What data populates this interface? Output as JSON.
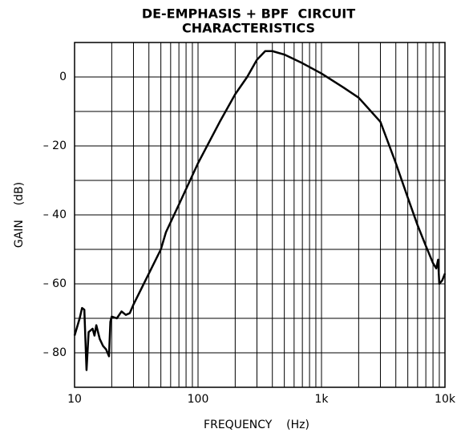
{
  "chart_data": {
    "type": "line",
    "title": [
      "DE-EMPHASIS + BPF  CIRCUIT",
      "CHARACTERISTICS"
    ],
    "xlabel": "FREQUENCY    (Hz)",
    "ylabel": "GAIN    (dB)",
    "x": [
      10,
      11,
      11.5,
      12,
      12.5,
      13,
      14,
      14.5,
      15,
      16,
      17,
      18,
      19,
      19.5,
      20,
      22,
      24,
      26,
      28,
      30,
      40,
      50,
      55,
      70,
      100,
      150,
      200,
      250,
      300,
      350,
      400,
      500,
      700,
      1000,
      1500,
      2000,
      3000,
      4000,
      5000,
      6000,
      7000,
      8000,
      8500,
      8800,
      9000,
      9500,
      10000
    ],
    "series": [
      {
        "color": "#000000",
        "values": [
          -75,
          -70,
          -67,
          -67.5,
          -85,
          -74,
          -73,
          -75,
          -72,
          -76,
          -78,
          -79,
          -81,
          -71,
          -69.5,
          -70,
          -68,
          -69,
          -68.5,
          -66,
          -57,
          -50,
          -45,
          -37,
          -25,
          -13,
          -5,
          0,
          5,
          7.5,
          7.5,
          6.5,
          4,
          1,
          -3,
          -6,
          -13,
          -25,
          -35,
          -43,
          -49,
          -54,
          -55.5,
          -53,
          -60,
          -59,
          -57
        ]
      }
    ],
    "xscale": "log",
    "xlim": [
      10,
      10000
    ],
    "xticks": [
      10,
      100,
      {
        "value": 1000,
        "label": "1k"
      },
      {
        "value": 10000,
        "label": "10k"
      }
    ],
    "ylim": [
      -90,
      10
    ],
    "yticks": [
      {
        "value": 0,
        "label": "0"
      },
      {
        "value": -20,
        "label": "– 20"
      },
      {
        "value": -40,
        "label": "– 40"
      },
      {
        "value": -60,
        "label": "– 60"
      },
      {
        "value": -80,
        "label": "– 80"
      }
    ],
    "grid": true
  }
}
